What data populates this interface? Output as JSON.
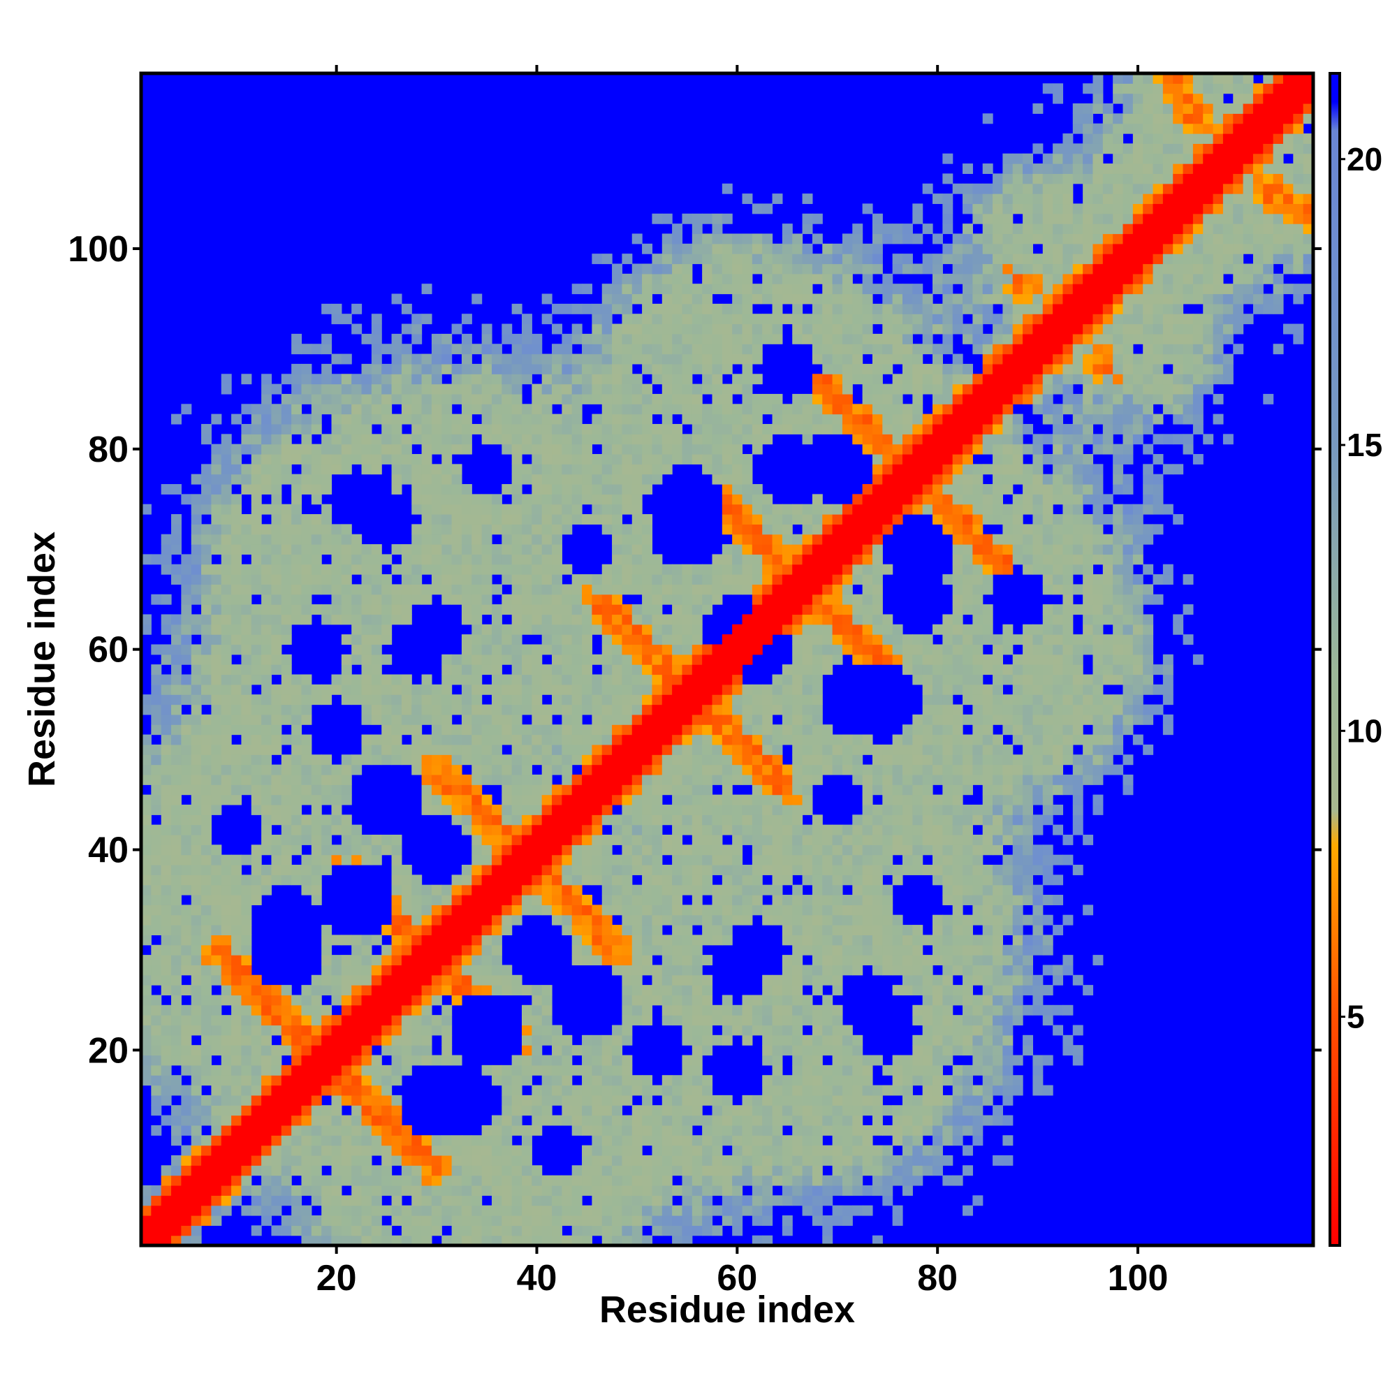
{
  "chart_data": {
    "type": "heatmap",
    "title": "",
    "xlabel": "Residue index",
    "ylabel": "Residue index",
    "n_residues": 117,
    "xlim": [
      1,
      117
    ],
    "ylim": [
      1,
      117
    ],
    "x_ticks": [
      20,
      40,
      60,
      80,
      100
    ],
    "y_ticks": [
      20,
      40,
      60,
      80,
      100
    ],
    "colorbar": {
      "range": [
        1,
        21.5
      ],
      "ticks": [
        5,
        10,
        15,
        20
      ],
      "stops": [
        {
          "value": 1,
          "color": "#ff0000"
        },
        {
          "value": 5,
          "color": "#ff5000"
        },
        {
          "value": 8,
          "color": "#ffaa00"
        },
        {
          "value": 8.6,
          "color": "#a8b890"
        },
        {
          "value": 11,
          "color": "#9cb898"
        },
        {
          "value": 15,
          "color": "#7899c0"
        },
        {
          "value": 18,
          "color": "#6f8fcf"
        },
        {
          "value": 20.5,
          "color": "#6a86d4"
        },
        {
          "value": 21,
          "color": "#0000ff"
        }
      ]
    },
    "background_value": 21.5,
    "background_color": "#0000ff",
    "diagonal": {
      "distance": 1,
      "band_width": 2
    },
    "structure": {
      "cutoff_value": 19,
      "blobs": [
        {
          "x": 30,
          "y": 15,
          "r": 14
        },
        {
          "x": 24,
          "y": 8,
          "r": 9
        },
        {
          "x": 15,
          "y": 33,
          "r": 12
        },
        {
          "x": 35,
          "y": 22,
          "r": 13
        },
        {
          "x": 25,
          "y": 45,
          "r": 13
        },
        {
          "x": 40,
          "y": 30,
          "r": 12
        },
        {
          "x": 42,
          "y": 10,
          "r": 10
        },
        {
          "x": 52,
          "y": 20,
          "r": 11
        },
        {
          "x": 60,
          "y": 28,
          "r": 11
        },
        {
          "x": 73,
          "y": 25,
          "r": 11
        },
        {
          "x": 70,
          "y": 15,
          "r": 7
        },
        {
          "x": 18,
          "y": 60,
          "r": 11
        },
        {
          "x": 30,
          "y": 62,
          "r": 11
        },
        {
          "x": 22,
          "y": 75,
          "r": 11
        },
        {
          "x": 35,
          "y": 78,
          "r": 10
        },
        {
          "x": 55,
          "y": 72,
          "r": 13
        },
        {
          "x": 62,
          "y": 60,
          "r": 12
        },
        {
          "x": 48,
          "y": 58,
          "r": 8
        },
        {
          "x": 70,
          "y": 78,
          "r": 12
        },
        {
          "x": 65,
          "y": 88,
          "r": 11
        },
        {
          "x": 58,
          "y": 92,
          "r": 8
        },
        {
          "x": 75,
          "y": 55,
          "r": 12
        },
        {
          "x": 78,
          "y": 65,
          "r": 12
        },
        {
          "x": 85,
          "y": 70,
          "r": 8
        },
        {
          "x": 70,
          "y": 45,
          "r": 10
        },
        {
          "x": 90,
          "y": 55,
          "r": 6
        },
        {
          "x": 95,
          "y": 100,
          "r": 8
        },
        {
          "x": 100,
          "y": 90,
          "r": 8
        },
        {
          "x": 108,
          "y": 112,
          "r": 8
        },
        {
          "x": 112,
          "y": 104,
          "r": 7
        },
        {
          "x": 8,
          "y": 40,
          "r": 7
        }
      ],
      "strands": [
        {
          "from": [
            8,
            30
          ],
          "to": [
            18,
            20
          ]
        },
        {
          "from": [
            20,
            18
          ],
          "to": [
            30,
            8
          ]
        },
        {
          "from": [
            21,
            38
          ],
          "to": [
            28,
            31
          ]
        },
        {
          "from": [
            31,
            28
          ],
          "to": [
            38,
            21
          ]
        },
        {
          "from": [
            30,
            48
          ],
          "to": [
            37,
            41
          ]
        },
        {
          "from": [
            41,
            37
          ],
          "to": [
            48,
            30
          ]
        },
        {
          "from": [
            46,
            65
          ],
          "to": [
            55,
            56
          ]
        },
        {
          "from": [
            56,
            55
          ],
          "to": [
            65,
            46
          ]
        },
        {
          "from": [
            57,
            76
          ],
          "to": [
            64,
            69
          ]
        },
        {
          "from": [
            69,
            64
          ],
          "to": [
            76,
            57
          ]
        },
        {
          "from": [
            68,
            87
          ],
          "to": [
            74,
            81
          ]
        },
        {
          "from": [
            80,
            75
          ],
          "to": [
            87,
            68
          ]
        },
        {
          "from": [
            88,
            97
          ],
          "to": [
            96,
            89
          ]
        },
        {
          "from": [
            103,
            117
          ],
          "to": [
            106,
            113
          ]
        },
        {
          "from": [
            113,
            106
          ],
          "to": [
            117,
            103
          ]
        }
      ],
      "near_diagonal_width": 7
    }
  }
}
